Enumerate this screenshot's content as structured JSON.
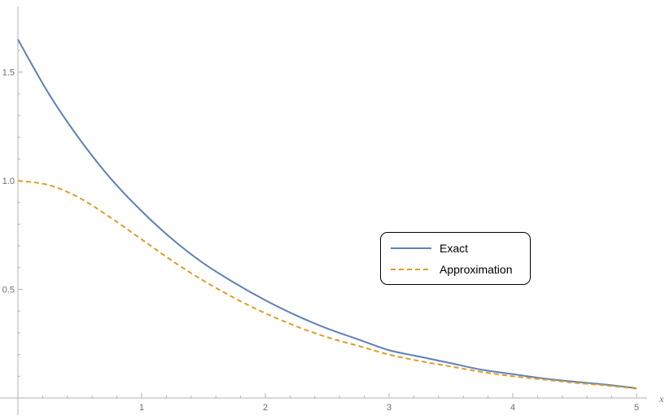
{
  "chart_data": {
    "type": "line",
    "title": "",
    "xlabel": "x",
    "ylabel": "",
    "xlim": [
      0,
      5
    ],
    "ylim": [
      0,
      1.7
    ],
    "x_ticks": [
      1,
      2,
      3,
      4,
      5
    ],
    "x_tick_labels": [
      "1",
      "2",
      "3",
      "4",
      "5"
    ],
    "y_ticks": [
      0.5,
      1.0,
      1.5
    ],
    "y_tick_labels": [
      "0.5",
      "1.0",
      "1.5"
    ],
    "grid": false,
    "legend_position": "right",
    "series": [
      {
        "name": "Exact",
        "color": "#5e81b5",
        "style": "solid",
        "x": [
          0,
          0.25,
          0.5,
          0.75,
          1,
          1.25,
          1.5,
          1.75,
          2,
          2.25,
          2.5,
          2.75,
          3,
          3.25,
          3.5,
          3.75,
          4,
          4.25,
          4.5,
          4.75,
          5
        ],
        "y": [
          1.65,
          1.4,
          1.19,
          1.01,
          0.86,
          0.73,
          0.62,
          0.53,
          0.45,
          0.38,
          0.32,
          0.27,
          0.22,
          0.19,
          0.16,
          0.13,
          0.11,
          0.09,
          0.075,
          0.062,
          0.045
        ]
      },
      {
        "name": "Approximation",
        "color": "#e19c24",
        "style": "dashed",
        "x": [
          0,
          0.25,
          0.5,
          0.75,
          1,
          1.25,
          1.5,
          1.75,
          2,
          2.25,
          2.5,
          2.75,
          3,
          3.25,
          3.5,
          3.75,
          4,
          4.25,
          4.5,
          4.75,
          5
        ],
        "y": [
          1.0,
          0.98,
          0.92,
          0.83,
          0.73,
          0.63,
          0.54,
          0.46,
          0.39,
          0.33,
          0.28,
          0.24,
          0.2,
          0.17,
          0.145,
          0.12,
          0.1,
          0.085,
          0.07,
          0.058,
          0.043
        ]
      }
    ]
  }
}
